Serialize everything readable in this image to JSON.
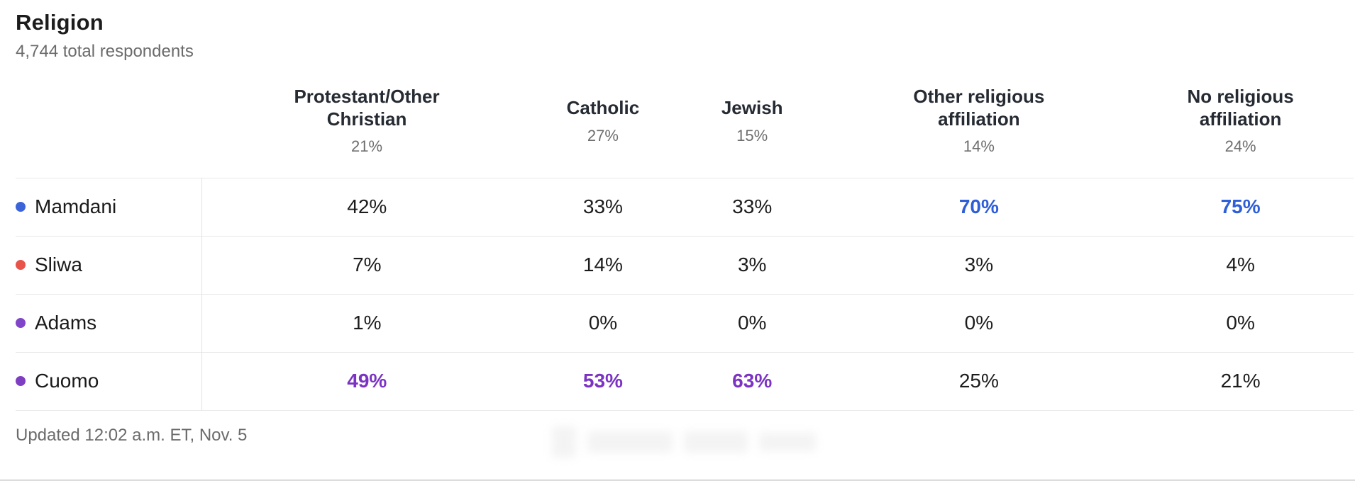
{
  "page": {
    "title": "Religion",
    "subtitle": "4,744 total respondents",
    "updated": "Updated 12:02 a.m. ET, Nov. 5"
  },
  "colors": {
    "mamdani_blue_dot": "#3c64d9",
    "sliwa_red_dot": "#e8534a",
    "adams_purple_dot": "#8045c8",
    "cuomo_purple_dot": "#7e3ec2",
    "highlight_blue_text": "#2e5ed8",
    "highlight_purple_text": "#7c33c4",
    "divider_gray": "#e8e8e8",
    "header_text": "#262b33",
    "secondary_text": "#6b6b6b"
  },
  "columns": [
    {
      "label": "Protestant/Other Christian",
      "share": "21%"
    },
    {
      "label": "Catholic",
      "share": "27%"
    },
    {
      "label": "Jewish",
      "share": "15%"
    },
    {
      "label": "Other religious affiliation",
      "share": "14%"
    },
    {
      "label": "No religious affiliation",
      "share": "24%"
    }
  ],
  "rows": [
    {
      "name": "Mamdani",
      "dot_color": "#3c64d9",
      "highlight_color": "#2e5ed8",
      "values": [
        "42%",
        "33%",
        "33%",
        "70%",
        "75%"
      ],
      "highlighted": [
        false,
        false,
        false,
        true,
        true
      ]
    },
    {
      "name": "Sliwa",
      "dot_color": "#e8534a",
      "highlight_color": "#e8534a",
      "values": [
        "7%",
        "14%",
        "3%",
        "3%",
        "4%"
      ],
      "highlighted": [
        false,
        false,
        false,
        false,
        false
      ]
    },
    {
      "name": "Adams",
      "dot_color": "#8045c8",
      "highlight_color": "#8045c8",
      "values": [
        "1%",
        "0%",
        "0%",
        "0%",
        "0%"
      ],
      "highlighted": [
        false,
        false,
        false,
        false,
        false
      ]
    },
    {
      "name": "Cuomo",
      "dot_color": "#7e3ec2",
      "highlight_color": "#7c33c4",
      "values": [
        "49%",
        "53%",
        "63%",
        "25%",
        "21%"
      ],
      "highlighted": [
        true,
        true,
        true,
        false,
        false
      ]
    }
  ],
  "chart_data": {
    "type": "table",
    "title": "Religion",
    "subtitle": "4,744 total respondents",
    "categories": [
      "Protestant/Other Christian",
      "Catholic",
      "Jewish",
      "Other religious affiliation",
      "No religious affiliation"
    ],
    "category_shares_pct": [
      21,
      27,
      15,
      14,
      24
    ],
    "series": [
      {
        "name": "Mamdani",
        "values": [
          42,
          33,
          33,
          70,
          75
        ]
      },
      {
        "name": "Sliwa",
        "values": [
          7,
          14,
          3,
          3,
          4
        ]
      },
      {
        "name": "Adams",
        "values": [
          1,
          0,
          0,
          0,
          0
        ]
      },
      {
        "name": "Cuomo",
        "values": [
          49,
          53,
          63,
          25,
          21
        ]
      }
    ],
    "units": "%",
    "leader_highlights": {
      "Mamdani": [
        "Other religious affiliation",
        "No religious affiliation"
      ],
      "Cuomo": [
        "Protestant/Other Christian",
        "Catholic",
        "Jewish"
      ]
    },
    "updated": "Updated 12:02 a.m. ET, Nov. 5"
  }
}
